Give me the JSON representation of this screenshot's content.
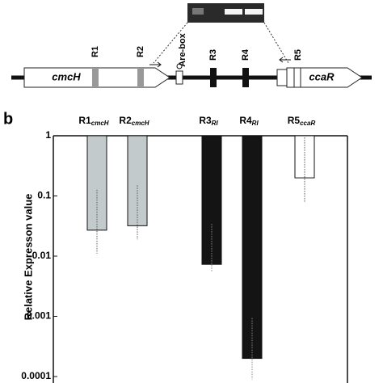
{
  "diagram": {
    "regions": [
      "R1",
      "R2",
      "R3",
      "R4",
      "R5"
    ],
    "genes": [
      "cmcH",
      "ccaR"
    ],
    "box_label": "Are-box"
  },
  "panel_label": "b",
  "chart_data": {
    "type": "bar",
    "y_label": "Relative Expresson value",
    "categories": [
      "R1",
      "R2",
      "R3",
      "R4",
      "R5"
    ],
    "category_subscripts": [
      "cmcH",
      "cmcH",
      "RI",
      "RI",
      "ccaR"
    ],
    "values": [
      0.027,
      0.032,
      0.0073,
      0.0002,
      0.2
    ],
    "error_low": [
      0.011,
      0.019,
      0.0054,
      9e-05,
      0.08
    ],
    "colors": [
      "#c3cacb",
      "#c3cacb",
      "#141414",
      "#141414",
      "#ffffff"
    ],
    "log_scale": true,
    "ylim": [
      0.0001,
      1
    ],
    "yticks": [
      1,
      0.1,
      0.01,
      0.001,
      0.0001
    ]
  }
}
